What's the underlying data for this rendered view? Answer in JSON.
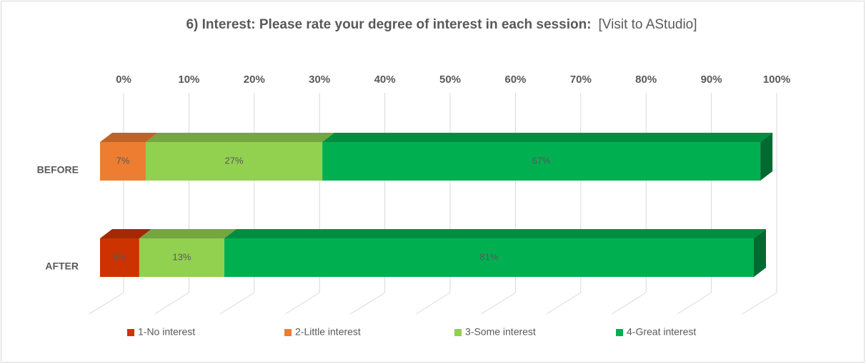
{
  "chart_data": {
    "type": "stacked_bar_3d",
    "title": "6) Interest: Please rate your degree of interest in each session:",
    "subtitle": "[Visit to AStudio]",
    "categories": [
      "BEFORE",
      "AFTER"
    ],
    "series": [
      {
        "name": "1-No interest",
        "color": "#cc3300",
        "values": [
          0,
          6
        ],
        "value_labels": [
          null,
          "6%"
        ]
      },
      {
        "name": "2-Little interest",
        "color": "#ed7d31",
        "values": [
          7,
          0
        ],
        "value_labels": [
          "7%",
          null
        ]
      },
      {
        "name": "3-Some interest",
        "color": "#92d050",
        "values": [
          27,
          13
        ],
        "value_labels": [
          "27%",
          "13%"
        ]
      },
      {
        "name": "4-Great interest",
        "color": "#00b050",
        "values": [
          67,
          81
        ],
        "value_labels": [
          "67%",
          "81%"
        ]
      }
    ],
    "xlim": [
      0,
      100
    ],
    "xticks": [
      {
        "value": 0,
        "label": "0%"
      },
      {
        "value": 10,
        "label": "10%"
      },
      {
        "value": 20,
        "label": "20%"
      },
      {
        "value": 30,
        "label": "30%"
      },
      {
        "value": 40,
        "label": "40%"
      },
      {
        "value": 50,
        "label": "50%"
      },
      {
        "value": 60,
        "label": "60%"
      },
      {
        "value": 70,
        "label": "70%"
      },
      {
        "value": 80,
        "label": "80%"
      },
      {
        "value": 90,
        "label": "90%"
      },
      {
        "value": 100,
        "label": "100%"
      }
    ],
    "grid": true,
    "legend": "bottom"
  }
}
